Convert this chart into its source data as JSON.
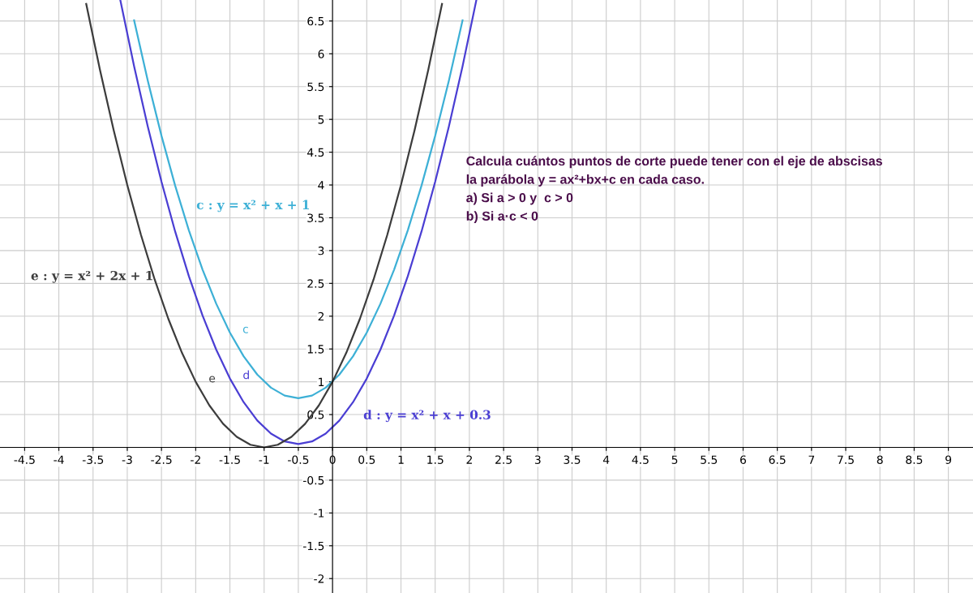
{
  "chart_data": {
    "type": "line",
    "xlim": [
      -4.86,
      9.36
    ],
    "ylim": [
      -2.22,
      6.82
    ],
    "xticks": [
      -4.5,
      -4,
      -3.5,
      -3,
      -2.5,
      -2,
      -1.5,
      -1,
      -0.5,
      0,
      0.5,
      1,
      1.5,
      2,
      2.5,
      3,
      3.5,
      4,
      4.5,
      5,
      5.5,
      6,
      6.5,
      7,
      7.5,
      8,
      8.5,
      9
    ],
    "yticks": [
      -2,
      -1.5,
      -1,
      -0.5,
      {
        "value": 0,
        "label": null
      },
      0.5,
      1,
      1.5,
      2,
      2.5,
      3,
      3.5,
      4,
      4.5,
      5,
      5.5,
      6,
      6.5
    ],
    "grid": true,
    "legend": false,
    "marker": "none",
    "line_style": "solid",
    "series": [
      {
        "name": "c : y = x² + x + 1",
        "color": "#3db0d6",
        "x": [
          -2.9,
          -2.7,
          -2.5,
          -2.3,
          -2.1,
          -1.9,
          -1.7,
          -1.5,
          -1.3,
          -1.1,
          -0.9,
          -0.7,
          -0.5,
          -0.3,
          -0.1,
          0.1,
          0.3,
          0.5,
          0.7,
          0.9,
          1.1,
          1.3,
          1.5,
          1.7,
          1.9
        ],
        "values": [
          6.51,
          5.59,
          4.75,
          3.99,
          3.31,
          2.71,
          2.19,
          1.75,
          1.39,
          1.11,
          0.91,
          0.79,
          0.75,
          0.79,
          0.91,
          1.11,
          1.39,
          1.75,
          2.19,
          2.71,
          3.31,
          3.99,
          4.75,
          5.59,
          6.51
        ]
      },
      {
        "name": "d : y = x² + x + 0.3",
        "color": "#4a3ed3",
        "x": [
          -3.1,
          -2.9,
          -2.7,
          -2.5,
          -2.3,
          -2.1,
          -1.9,
          -1.7,
          -1.5,
          -1.3,
          -1.1,
          -0.9,
          -0.7,
          -0.5,
          -0.3,
          -0.1,
          0.1,
          0.3,
          0.5,
          0.7,
          0.9,
          1.1,
          1.3,
          1.5,
          1.7,
          1.9,
          2.1
        ],
        "values": [
          6.81,
          5.81,
          4.89,
          4.05,
          3.29,
          2.61,
          2.01,
          1.49,
          1.05,
          0.69,
          0.41,
          0.21,
          0.09,
          0.05,
          0.09,
          0.21,
          0.41,
          0.69,
          1.05,
          1.49,
          2.01,
          2.61,
          3.29,
          4.05,
          4.89,
          5.81,
          6.81
        ]
      },
      {
        "name": "e : y = x² + 2x + 1",
        "color": "#3c3c3c",
        "x": [
          -3.6,
          -3.4,
          -3.2,
          -3.0,
          -2.8,
          -2.6,
          -2.4,
          -2.2,
          -2.0,
          -1.8,
          -1.6,
          -1.4,
          -1.2,
          -1.0,
          -0.8,
          -0.6,
          -0.4,
          -0.2,
          0.0,
          0.2,
          0.4,
          0.6,
          0.8,
          1.0,
          1.2,
          1.4,
          1.6
        ],
        "values": [
          6.76,
          5.76,
          4.84,
          4,
          3.24,
          2.56,
          1.96,
          1.44,
          1,
          0.64,
          0.36,
          0.16,
          0.04,
          0,
          0.04,
          0.16,
          0.36,
          0.64,
          1,
          1.44,
          1.96,
          2.56,
          3.24,
          4,
          4.84,
          5.76,
          6.76
        ]
      }
    ],
    "annotations": [
      "c",
      "d",
      "e",
      "Calcula cuántos puntos de corte puede tener con el eje de abscisas",
      "la parábola y = ax²+bx+c en cada caso.",
      "a) Si a > 0 y  c > 0",
      "b) Si a·c < 0"
    ]
  }
}
